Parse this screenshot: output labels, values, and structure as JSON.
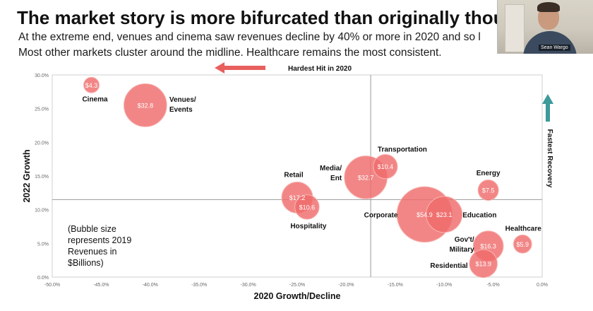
{
  "slide": {
    "title": "The market story is more bifurcated than originally thought.",
    "subtitle_line1": "At the extreme end, venues and cinema saw revenues decline by 40% or more in 2020 and so l",
    "subtitle_line2": "Most other markets cluster around the midline. Healthcare remains the most consistent."
  },
  "video": {
    "name_tag": "Sean Wargo"
  },
  "note": "(Bubble size represents 2019 Revenues in $Billions)",
  "chart_data": {
    "type": "scatter",
    "bubble": true,
    "title": "",
    "xlabel": "2020 Growth/Decline",
    "ylabel": "2022 Growth",
    "xlim": [
      -50,
      0
    ],
    "ylim": [
      0,
      30
    ],
    "x_ticks": [
      "-50.0%",
      "-45.0%",
      "-40.0%",
      "-35.0%",
      "-30.0%",
      "-25.0%",
      "-20.0%",
      "-15.0%",
      "-10.0%",
      "-5.0%",
      "0.0%"
    ],
    "y_ticks": [
      "0.0%",
      "5.0%",
      "10.0%",
      "15.0%",
      "20.0%",
      "25.0%",
      "30.0%"
    ],
    "x_reference": -17.5,
    "y_reference": 11.5,
    "bubble_color": "#ef6b6b",
    "annotations": {
      "left": "Hardest Hit in 2020",
      "right": "Fastest Recovery"
    },
    "points": [
      {
        "name": "Cinema",
        "x": -46.0,
        "y": 28.5,
        "size": 4.3,
        "value_label": "$4.3"
      },
      {
        "name": "Venues/\nEvents",
        "x": -40.5,
        "y": 25.5,
        "size": 32.8,
        "value_label": "$32.8"
      },
      {
        "name": "Retail",
        "x": -25.0,
        "y": 11.8,
        "size": 17.2,
        "value_label": "$17.2"
      },
      {
        "name": "Hospitality",
        "x": -24.0,
        "y": 10.4,
        "size": 10.6,
        "value_label": "$10.6"
      },
      {
        "name": "Media/\nEnt",
        "x": -18.0,
        "y": 14.8,
        "size": 32.7,
        "value_label": "$32.7"
      },
      {
        "name": "Transportation",
        "x": -16.0,
        "y": 16.4,
        "size": 10.4,
        "value_label": "$10.4"
      },
      {
        "name": "Corporate",
        "x": -12.0,
        "y": 9.3,
        "size": 54.9,
        "value_label": "$54.9"
      },
      {
        "name": "Education",
        "x": -10.0,
        "y": 9.3,
        "size": 23.1,
        "value_label": "$23.1"
      },
      {
        "name": "Energy",
        "x": -5.5,
        "y": 12.9,
        "size": 7.5,
        "value_label": "$7.5"
      },
      {
        "name": "Healthcare",
        "x": -2.0,
        "y": 4.9,
        "size": 5.9,
        "value_label": "$5.9"
      },
      {
        "name": "Gov't/\nMilitary",
        "x": -5.5,
        "y": 4.6,
        "size": 16.3,
        "value_label": "$16.3"
      },
      {
        "name": "Residential",
        "x": -6.0,
        "y": 2.0,
        "size": 13.9,
        "value_label": "$13.9"
      }
    ]
  }
}
